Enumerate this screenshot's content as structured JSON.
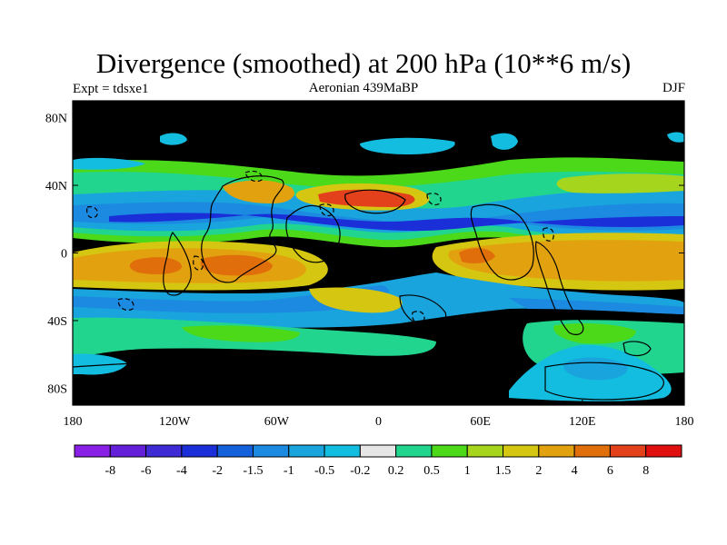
{
  "header": {
    "title": "Divergence (smoothed) at 200 hPa (10**6 m/s)",
    "left": "Expt = tdsxe1",
    "center": "Aeronian 439MaBP",
    "right": "DJF"
  },
  "map": {
    "lon_ticks": [
      "180",
      "120W",
      "60W",
      "0",
      "60E",
      "120E",
      "180"
    ],
    "lat_ticks": [
      "80N",
      "40N",
      "0",
      "40S",
      "80S"
    ],
    "lat_values": [
      80,
      40,
      0,
      -40,
      -80
    ],
    "lon_values": [
      -180,
      -120,
      -60,
      0,
      60,
      120,
      180
    ]
  },
  "legend": {
    "labels": [
      "-8",
      "-6",
      "-4",
      "-2",
      "-1.5",
      "-1",
      "-0.5",
      "-0.2",
      "0.2",
      "0.5",
      "1",
      "1.5",
      "2",
      "4",
      "6",
      "8"
    ],
    "colors": [
      "#8a1fe6",
      "#6420d8",
      "#3f2bd6",
      "#1a2fd8",
      "#1561dc",
      "#1b8ae0",
      "#19a4dd",
      "#13bde0",
      "#e6e6e6",
      "#21d58f",
      "#4cd91a",
      "#a5d51c",
      "#d5c711",
      "#e2a20f",
      "#e06f0b",
      "#e2411b",
      "#e01010"
    ]
  },
  "colors": {
    "background": "#e6e6e6",
    "coast": "#000000"
  }
}
